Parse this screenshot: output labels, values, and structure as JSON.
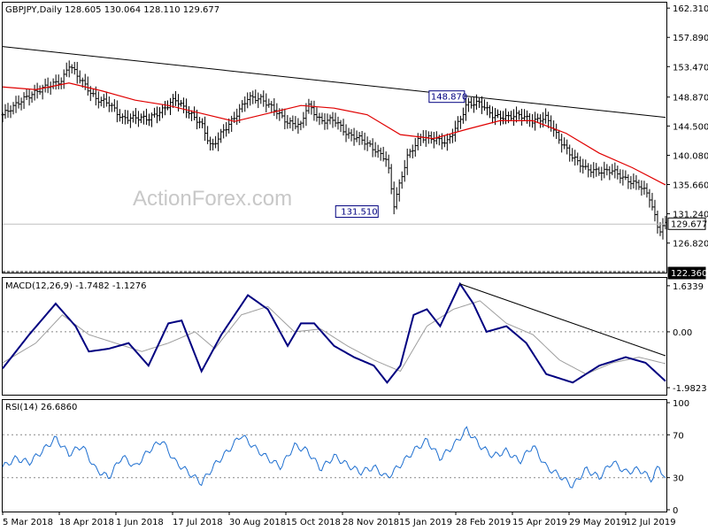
{
  "header": {
    "symbol": "GBPJPY",
    "timeframe": "Daily",
    "ohlc": "128.605 130.064 128.110 129.677"
  },
  "watermark": "ActionForex.com",
  "colors": {
    "price": "#000000",
    "ma": "#e00000",
    "macd": "#000080",
    "signal": "#9e9e9e",
    "rsi": "#1e6fd0",
    "trendline": "#000000"
  },
  "chart_data": [
    {
      "type": "bar",
      "panel": "price",
      "title": "GBPJPY,Daily 128.605 130.064 128.110 129.677",
      "ylim": [
        122.36,
        163.0
      ],
      "y_ticks": [
        "162.310",
        "157.890",
        "153.470",
        "148.870",
        "144.500",
        "140.080",
        "135.660",
        "131.240",
        "126.820"
      ],
      "current_price_label": "129.677",
      "floor_label": "122.360",
      "x_ticks": [
        "5 Mar 2018",
        "18 Apr 2018",
        "1 Jun 2018",
        "17 Jul 2018",
        "30 Aug 2018",
        "15 Oct 2018",
        "28 Nov 2018",
        "15 Jan 2019",
        "28 Feb 2019",
        "15 Apr 2019",
        "29 May 2019",
        "12 Jul 2019"
      ],
      "annotations": [
        {
          "label": "148.870",
          "value": 148.87
        },
        {
          "label": "131.510",
          "value": 131.51
        }
      ],
      "trendline": [
        [
          0,
          156.5
        ],
        [
          1,
          145.8
        ]
      ],
      "close": [
        {
          "t": 0.0,
          "v": 146.2
        },
        {
          "t": 0.03,
          "v": 148.5
        },
        {
          "t": 0.06,
          "v": 150.2
        },
        {
          "t": 0.09,
          "v": 151.4
        },
        {
          "t": 0.1,
          "v": 153.8
        },
        {
          "t": 0.12,
          "v": 151.2
        },
        {
          "t": 0.14,
          "v": 148.6
        },
        {
          "t": 0.16,
          "v": 148.0
        },
        {
          "t": 0.18,
          "v": 145.6
        },
        {
          "t": 0.2,
          "v": 145.8
        },
        {
          "t": 0.22,
          "v": 145.6
        },
        {
          "t": 0.24,
          "v": 146.8
        },
        {
          "t": 0.26,
          "v": 148.6
        },
        {
          "t": 0.28,
          "v": 146.6
        },
        {
          "t": 0.3,
          "v": 144.8
        },
        {
          "t": 0.315,
          "v": 141.2
        },
        {
          "t": 0.33,
          "v": 143.4
        },
        {
          "t": 0.35,
          "v": 145.8
        },
        {
          "t": 0.37,
          "v": 148.8
        },
        {
          "t": 0.39,
          "v": 148.6
        },
        {
          "t": 0.41,
          "v": 147.0
        },
        {
          "t": 0.43,
          "v": 145.0
        },
        {
          "t": 0.45,
          "v": 144.6
        },
        {
          "t": 0.46,
          "v": 147.8
        },
        {
          "t": 0.48,
          "v": 145.2
        },
        {
          "t": 0.5,
          "v": 145.5
        },
        {
          "t": 0.52,
          "v": 143.2
        },
        {
          "t": 0.54,
          "v": 142.6
        },
        {
          "t": 0.56,
          "v": 141.0
        },
        {
          "t": 0.58,
          "v": 139.4
        },
        {
          "t": 0.59,
          "v": 132.5
        },
        {
          "t": 0.61,
          "v": 139.8
        },
        {
          "t": 0.63,
          "v": 142.8
        },
        {
          "t": 0.65,
          "v": 142.6
        },
        {
          "t": 0.67,
          "v": 142.0
        },
        {
          "t": 0.69,
          "v": 145.4
        },
        {
          "t": 0.7,
          "v": 147.8
        },
        {
          "t": 0.72,
          "v": 148.0
        },
        {
          "t": 0.74,
          "v": 146.0
        },
        {
          "t": 0.76,
          "v": 145.8
        },
        {
          "t": 0.78,
          "v": 146.2
        },
        {
          "t": 0.8,
          "v": 145.2
        },
        {
          "t": 0.82,
          "v": 145.8
        },
        {
          "t": 0.84,
          "v": 142.4
        },
        {
          "t": 0.86,
          "v": 139.8
        },
        {
          "t": 0.88,
          "v": 138.0
        },
        {
          "t": 0.9,
          "v": 137.6
        },
        {
          "t": 0.92,
          "v": 137.8
        },
        {
          "t": 0.94,
          "v": 136.4
        },
        {
          "t": 0.96,
          "v": 135.6
        },
        {
          "t": 0.975,
          "v": 134.0
        },
        {
          "t": 0.99,
          "v": 128.6
        },
        {
          "t": 1.0,
          "v": 129.677
        }
      ],
      "ma": [
        {
          "t": 0.0,
          "v": 150.4
        },
        {
          "t": 0.05,
          "v": 150.0
        },
        {
          "t": 0.1,
          "v": 151.0
        },
        {
          "t": 0.15,
          "v": 149.8
        },
        {
          "t": 0.2,
          "v": 148.4
        },
        {
          "t": 0.25,
          "v": 147.6
        },
        {
          "t": 0.3,
          "v": 146.4
        },
        {
          "t": 0.35,
          "v": 145.2
        },
        {
          "t": 0.4,
          "v": 146.4
        },
        {
          "t": 0.45,
          "v": 147.6
        },
        {
          "t": 0.5,
          "v": 147.2
        },
        {
          "t": 0.55,
          "v": 146.2
        },
        {
          "t": 0.6,
          "v": 143.2
        },
        {
          "t": 0.65,
          "v": 142.6
        },
        {
          "t": 0.7,
          "v": 144.0
        },
        {
          "t": 0.75,
          "v": 145.3
        },
        {
          "t": 0.8,
          "v": 145.3
        },
        {
          "t": 0.85,
          "v": 143.4
        },
        {
          "t": 0.9,
          "v": 140.4
        },
        {
          "t": 0.95,
          "v": 138.2
        },
        {
          "t": 1.0,
          "v": 135.6
        }
      ]
    },
    {
      "type": "line",
      "panel": "macd",
      "title": "MACD(12,26,9) -1.7482 -1.1276",
      "ylim": [
        -2.2,
        1.85
      ],
      "y_ticks": [
        "1.6339",
        "0.00",
        "-1.9823"
      ],
      "series": [
        {
          "name": "MACD(12,26,9)",
          "values": [
            {
              "t": 0.0,
              "v": -1.3
            },
            {
              "t": 0.04,
              "v": -0.1
            },
            {
              "t": 0.08,
              "v": 1.0
            },
            {
              "t": 0.11,
              "v": 0.2
            },
            {
              "t": 0.13,
              "v": -0.7
            },
            {
              "t": 0.16,
              "v": -0.6
            },
            {
              "t": 0.19,
              "v": -0.4
            },
            {
              "t": 0.22,
              "v": -1.2
            },
            {
              "t": 0.25,
              "v": 0.3
            },
            {
              "t": 0.27,
              "v": 0.4
            },
            {
              "t": 0.3,
              "v": -1.4
            },
            {
              "t": 0.33,
              "v": -0.1
            },
            {
              "t": 0.37,
              "v": 1.3
            },
            {
              "t": 0.4,
              "v": 0.8
            },
            {
              "t": 0.43,
              "v": -0.5
            },
            {
              "t": 0.45,
              "v": 0.3
            },
            {
              "t": 0.47,
              "v": 0.3
            },
            {
              "t": 0.5,
              "v": -0.5
            },
            {
              "t": 0.53,
              "v": -0.9
            },
            {
              "t": 0.56,
              "v": -1.2
            },
            {
              "t": 0.58,
              "v": -1.8
            },
            {
              "t": 0.6,
              "v": -1.2
            },
            {
              "t": 0.62,
              "v": 0.6
            },
            {
              "t": 0.64,
              "v": 0.8
            },
            {
              "t": 0.66,
              "v": 0.2
            },
            {
              "t": 0.69,
              "v": 1.7
            },
            {
              "t": 0.71,
              "v": 1.0
            },
            {
              "t": 0.73,
              "v": 0.0
            },
            {
              "t": 0.76,
              "v": 0.2
            },
            {
              "t": 0.79,
              "v": -0.4
            },
            {
              "t": 0.82,
              "v": -1.5
            },
            {
              "t": 0.86,
              "v": -1.8
            },
            {
              "t": 0.9,
              "v": -1.2
            },
            {
              "t": 0.94,
              "v": -0.9
            },
            {
              "t": 0.97,
              "v": -1.1
            },
            {
              "t": 1.0,
              "v": -1.75
            }
          ]
        },
        {
          "name": "",
          "values": [
            {
              "t": 0.0,
              "v": -1.1
            },
            {
              "t": 0.05,
              "v": -0.4
            },
            {
              "t": 0.09,
              "v": 0.6
            },
            {
              "t": 0.13,
              "v": -0.1
            },
            {
              "t": 0.17,
              "v": -0.4
            },
            {
              "t": 0.21,
              "v": -0.7
            },
            {
              "t": 0.25,
              "v": -0.4
            },
            {
              "t": 0.29,
              "v": 0.0
            },
            {
              "t": 0.32,
              "v": -0.6
            },
            {
              "t": 0.36,
              "v": 0.6
            },
            {
              "t": 0.4,
              "v": 0.9
            },
            {
              "t": 0.44,
              "v": 0.0
            },
            {
              "t": 0.48,
              "v": 0.1
            },
            {
              "t": 0.52,
              "v": -0.5
            },
            {
              "t": 0.56,
              "v": -1.0
            },
            {
              "t": 0.6,
              "v": -1.4
            },
            {
              "t": 0.64,
              "v": 0.2
            },
            {
              "t": 0.68,
              "v": 0.8
            },
            {
              "t": 0.72,
              "v": 1.1
            },
            {
              "t": 0.76,
              "v": 0.3
            },
            {
              "t": 0.8,
              "v": -0.1
            },
            {
              "t": 0.84,
              "v": -1.0
            },
            {
              "t": 0.88,
              "v": -1.5
            },
            {
              "t": 0.92,
              "v": -1.1
            },
            {
              "t": 0.96,
              "v": -0.9
            },
            {
              "t": 1.0,
              "v": -1.13
            }
          ]
        }
      ],
      "trendline": [
        [
          0.69,
          1.7
        ],
        [
          1.0,
          -0.85
        ]
      ]
    },
    {
      "type": "line",
      "panel": "rsi",
      "title": "RSI(14) 26.6860",
      "ylim": [
        0,
        100
      ],
      "y_ticks": [
        "100",
        "70",
        "30",
        "0"
      ],
      "reference_levels": [
        70,
        30
      ],
      "series": [
        {
          "name": "RSI(14)",
          "values": [
            {
              "t": 0.0,
              "v": 40
            },
            {
              "t": 0.02,
              "v": 48
            },
            {
              "t": 0.04,
              "v": 44
            },
            {
              "t": 0.06,
              "v": 55
            },
            {
              "t": 0.08,
              "v": 67
            },
            {
              "t": 0.1,
              "v": 52
            },
            {
              "t": 0.12,
              "v": 60
            },
            {
              "t": 0.14,
              "v": 38
            },
            {
              "t": 0.16,
              "v": 30
            },
            {
              "t": 0.18,
              "v": 50
            },
            {
              "t": 0.2,
              "v": 40
            },
            {
              "t": 0.22,
              "v": 55
            },
            {
              "t": 0.24,
              "v": 65
            },
            {
              "t": 0.26,
              "v": 45
            },
            {
              "t": 0.28,
              "v": 35
            },
            {
              "t": 0.3,
              "v": 25
            },
            {
              "t": 0.32,
              "v": 42
            },
            {
              "t": 0.34,
              "v": 55
            },
            {
              "t": 0.36,
              "v": 70
            },
            {
              "t": 0.38,
              "v": 58
            },
            {
              "t": 0.4,
              "v": 48
            },
            {
              "t": 0.42,
              "v": 40
            },
            {
              "t": 0.44,
              "v": 60
            },
            {
              "t": 0.46,
              "v": 55
            },
            {
              "t": 0.48,
              "v": 38
            },
            {
              "t": 0.5,
              "v": 50
            },
            {
              "t": 0.52,
              "v": 42
            },
            {
              "t": 0.54,
              "v": 35
            },
            {
              "t": 0.56,
              "v": 40
            },
            {
              "t": 0.58,
              "v": 30
            },
            {
              "t": 0.6,
              "v": 42
            },
            {
              "t": 0.62,
              "v": 55
            },
            {
              "t": 0.64,
              "v": 65
            },
            {
              "t": 0.66,
              "v": 48
            },
            {
              "t": 0.68,
              "v": 60
            },
            {
              "t": 0.7,
              "v": 75
            },
            {
              "t": 0.72,
              "v": 60
            },
            {
              "t": 0.74,
              "v": 50
            },
            {
              "t": 0.76,
              "v": 55
            },
            {
              "t": 0.78,
              "v": 45
            },
            {
              "t": 0.8,
              "v": 60
            },
            {
              "t": 0.82,
              "v": 40
            },
            {
              "t": 0.84,
              "v": 32
            },
            {
              "t": 0.86,
              "v": 22
            },
            {
              "t": 0.88,
              "v": 38
            },
            {
              "t": 0.9,
              "v": 30
            },
            {
              "t": 0.92,
              "v": 45
            },
            {
              "t": 0.94,
              "v": 35
            },
            {
              "t": 0.96,
              "v": 38
            },
            {
              "t": 0.98,
              "v": 28
            },
            {
              "t": 0.99,
              "v": 42
            },
            {
              "t": 1.0,
              "v": 26.686
            }
          ]
        }
      ]
    }
  ]
}
